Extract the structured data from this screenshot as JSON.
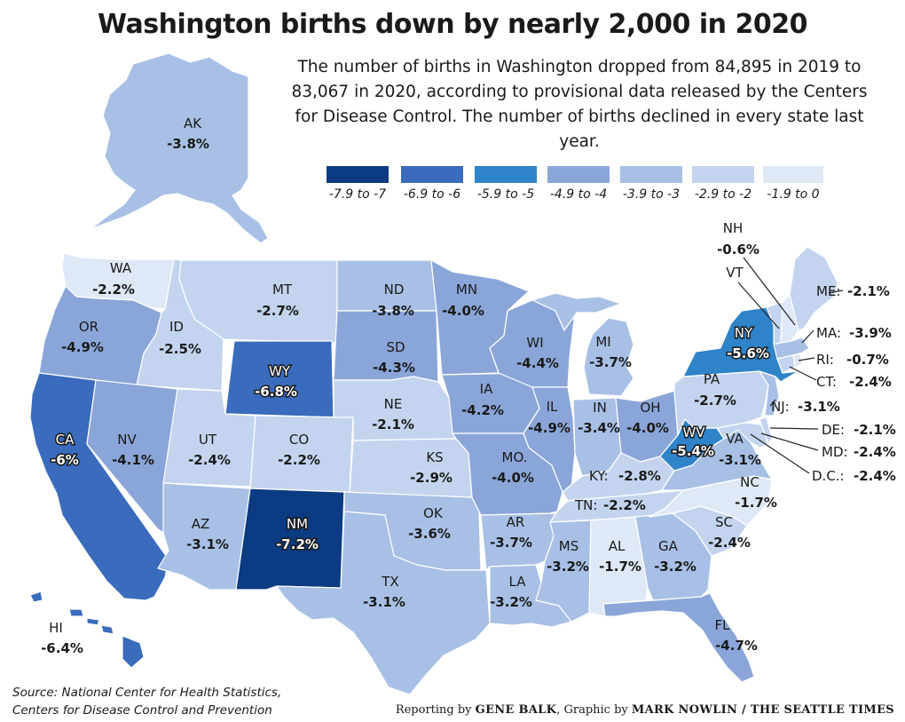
{
  "title": "Washington births down by nearly 2,000 in 2020",
  "subtitle": "The number of births in Washington dropped from 84,895 in 2019 to 83,067 in 2020, according to provisional data released by the Centers for Disease Control. The number of births declined in every state last year.",
  "legend": [
    {
      "label": "-7.9 to -7",
      "color": "#0b3b82"
    },
    {
      "label": "-6.9 to -6",
      "color": "#3a6bbc"
    },
    {
      "label": "-5.9 to -5",
      "color": "#2f83c9"
    },
    {
      "label": "-4.9 to -4",
      "color": "#8aa6d9"
    },
    {
      "label": "-3.9 to -3",
      "color": "#a8c0e6"
    },
    {
      "label": "-2.9 to -2",
      "color": "#c4d4ef"
    },
    {
      "label": "-1.9 to 0",
      "color": "#dfe8f6"
    }
  ],
  "states": {
    "AK": {
      "abbr": "AK",
      "change": "-3.8%"
    },
    "WA": {
      "abbr": "WA",
      "change": "-2.2%"
    },
    "OR": {
      "abbr": "OR",
      "change": "-4.9%"
    },
    "CA": {
      "abbr": "CA",
      "change": "-6%"
    },
    "ID": {
      "abbr": "ID",
      "change": "-2.5%"
    },
    "NV": {
      "abbr": "NV",
      "change": "-4.1%"
    },
    "MT": {
      "abbr": "MT",
      "change": "-2.7%"
    },
    "WY": {
      "abbr": "WY",
      "change": "-6.8%"
    },
    "UT": {
      "abbr": "UT",
      "change": "-2.4%"
    },
    "CO": {
      "abbr": "CO",
      "change": "-2.2%"
    },
    "AZ": {
      "abbr": "AZ",
      "change": "-3.1%"
    },
    "NM": {
      "abbr": "NM",
      "change": "-7.2%"
    },
    "ND": {
      "abbr": "ND",
      "change": "-3.8%"
    },
    "SD": {
      "abbr": "SD",
      "change": "-4.3%"
    },
    "NE": {
      "abbr": "NE",
      "change": "-2.1%"
    },
    "KS": {
      "abbr": "KS",
      "change": "-2.9%"
    },
    "OK": {
      "abbr": "OK",
      "change": "-3.6%"
    },
    "TX": {
      "abbr": "TX",
      "change": "-3.1%"
    },
    "MN": {
      "abbr": "MN",
      "change": "-4.0%"
    },
    "IA": {
      "abbr": "IA",
      "change": "-4.2%"
    },
    "MO": {
      "abbr": "MO.",
      "change": "-4.0%"
    },
    "AR": {
      "abbr": "AR",
      "change": "-3.7%"
    },
    "LA": {
      "abbr": "LA",
      "change": "-3.2%"
    },
    "WI": {
      "abbr": "WI",
      "change": "-4.4%"
    },
    "IL": {
      "abbr": "IL",
      "change": "-4.9%"
    },
    "MI": {
      "abbr": "MI",
      "change": "-3.7%"
    },
    "IN": {
      "abbr": "IN",
      "change": "-3.4%"
    },
    "OH": {
      "abbr": "OH",
      "change": "-4.0%"
    },
    "KY": {
      "abbr": "KY:",
      "change": "-2.8%"
    },
    "TN": {
      "abbr": "TN:",
      "change": "-2.2%"
    },
    "MS": {
      "abbr": "MS",
      "change": "-3.2%"
    },
    "AL": {
      "abbr": "AL",
      "change": "-1.7%"
    },
    "GA": {
      "abbr": "GA",
      "change": "-3.2%"
    },
    "FL": {
      "abbr": "FL",
      "change": "-4.7%"
    },
    "SC": {
      "abbr": "SC",
      "change": "-2.4%"
    },
    "NC": {
      "abbr": "NC",
      "change": "-1.7%"
    },
    "VA": {
      "abbr": "VA",
      "change": "-3.1%"
    },
    "WV": {
      "abbr": "WV",
      "change": "-5.4%"
    },
    "PA": {
      "abbr": "PA",
      "change": "-2.7%"
    },
    "NY": {
      "abbr": "NY",
      "change": "-5.6%"
    },
    "NJ": {
      "abbr": "NJ:",
      "change": "-3.1%"
    },
    "DE": {
      "abbr": "DE:",
      "change": "-2.1%"
    },
    "MD": {
      "abbr": "MD:",
      "change": "-2.4%"
    },
    "DC": {
      "abbr": "D.C.:",
      "change": "-2.4%"
    },
    "CT": {
      "abbr": "CT:",
      "change": "-2.4%"
    },
    "RI": {
      "abbr": "RI:",
      "change": "-0.7%"
    },
    "MA": {
      "abbr": "MA:",
      "change": "-3.9%"
    },
    "ME": {
      "abbr": "ME:",
      "change": "-2.1%"
    },
    "NH": {
      "abbr": "NH",
      "change": "-0.6%"
    },
    "VT": {
      "abbr": "VT",
      "change": ""
    },
    "HI": {
      "abbr": "HI",
      "change": "-6.4%"
    }
  },
  "source": {
    "line1": "Source: National Center for Health Statistics,",
    "line2": "Centers for Disease Control and Prevention"
  },
  "credits": {
    "reporting_prefix": "Reporting by",
    "reporter": "GENE BALK",
    "graphic_prefix": ", Graphic by",
    "graphic_by": "MARK NOWLIN / THE SEATTLE TIMES"
  }
}
